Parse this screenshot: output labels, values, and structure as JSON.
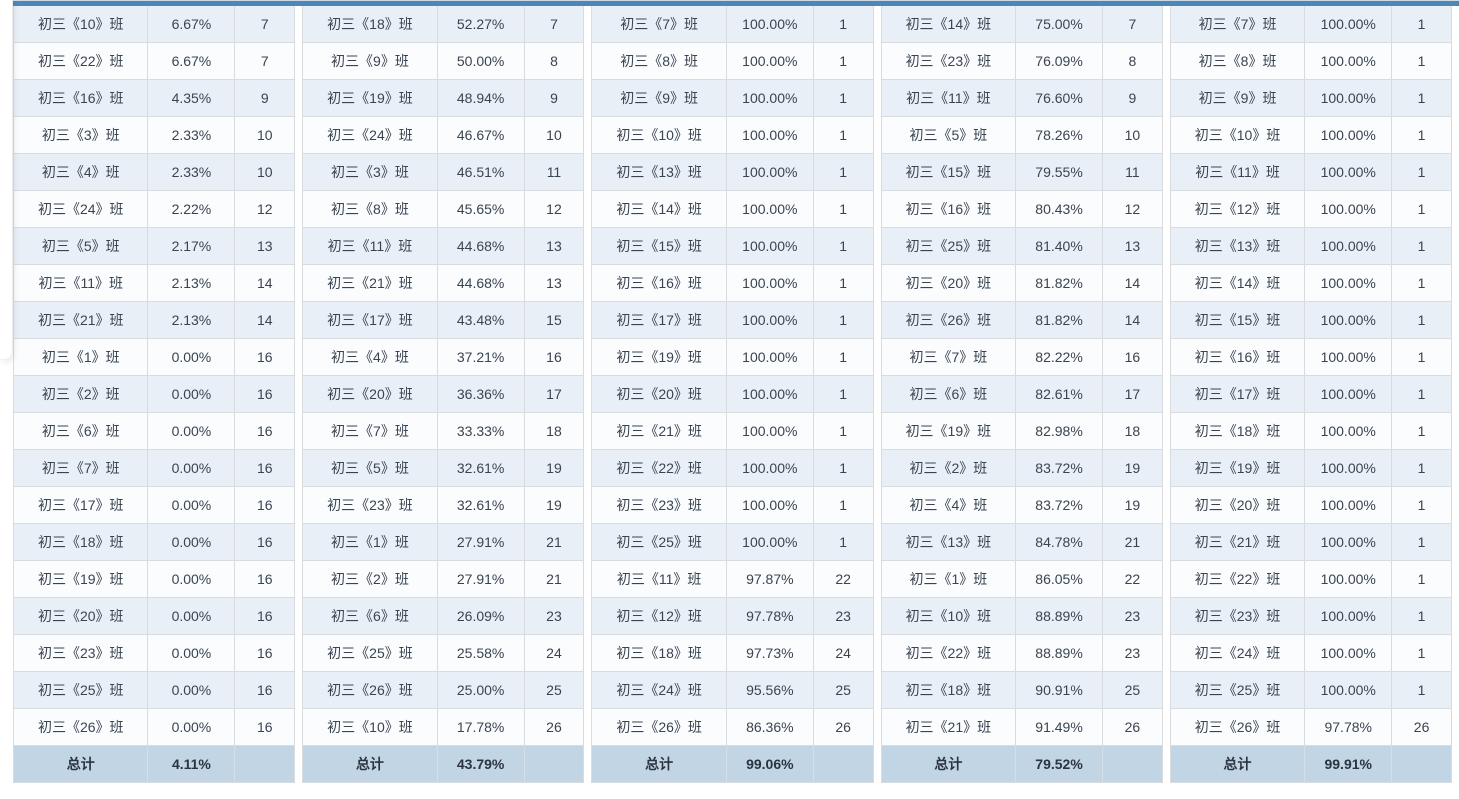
{
  "page": {
    "colors": {
      "top_bar": "#4e87b6",
      "row_stripe": "#e9eff7",
      "footer_bg": "#c2d5e5"
    }
  },
  "tables": [
    {
      "footer": {
        "label": "总计",
        "percent": "4.11%"
      },
      "rows": [
        {
          "name": "初三《10》班",
          "percent": "6.67%",
          "rank": "7"
        },
        {
          "name": "初三《22》班",
          "percent": "6.67%",
          "rank": "7"
        },
        {
          "name": "初三《16》班",
          "percent": "4.35%",
          "rank": "9"
        },
        {
          "name": "初三《3》班",
          "percent": "2.33%",
          "rank": "10"
        },
        {
          "name": "初三《4》班",
          "percent": "2.33%",
          "rank": "10"
        },
        {
          "name": "初三《24》班",
          "percent": "2.22%",
          "rank": "12"
        },
        {
          "name": "初三《5》班",
          "percent": "2.17%",
          "rank": "13"
        },
        {
          "name": "初三《11》班",
          "percent": "2.13%",
          "rank": "14"
        },
        {
          "name": "初三《21》班",
          "percent": "2.13%",
          "rank": "14"
        },
        {
          "name": "初三《1》班",
          "percent": "0.00%",
          "rank": "16"
        },
        {
          "name": "初三《2》班",
          "percent": "0.00%",
          "rank": "16"
        },
        {
          "name": "初三《6》班",
          "percent": "0.00%",
          "rank": "16"
        },
        {
          "name": "初三《7》班",
          "percent": "0.00%",
          "rank": "16"
        },
        {
          "name": "初三《17》班",
          "percent": "0.00%",
          "rank": "16"
        },
        {
          "name": "初三《18》班",
          "percent": "0.00%",
          "rank": "16"
        },
        {
          "name": "初三《19》班",
          "percent": "0.00%",
          "rank": "16"
        },
        {
          "name": "初三《20》班",
          "percent": "0.00%",
          "rank": "16"
        },
        {
          "name": "初三《23》班",
          "percent": "0.00%",
          "rank": "16"
        },
        {
          "name": "初三《25》班",
          "percent": "0.00%",
          "rank": "16"
        },
        {
          "name": "初三《26》班",
          "percent": "0.00%",
          "rank": "16"
        }
      ]
    },
    {
      "footer": {
        "label": "总计",
        "percent": "43.79%"
      },
      "rows": [
        {
          "name": "初三《18》班",
          "percent": "52.27%",
          "rank": "7"
        },
        {
          "name": "初三《9》班",
          "percent": "50.00%",
          "rank": "8"
        },
        {
          "name": "初三《19》班",
          "percent": "48.94%",
          "rank": "9"
        },
        {
          "name": "初三《24》班",
          "percent": "46.67%",
          "rank": "10"
        },
        {
          "name": "初三《3》班",
          "percent": "46.51%",
          "rank": "11"
        },
        {
          "name": "初三《8》班",
          "percent": "45.65%",
          "rank": "12"
        },
        {
          "name": "初三《11》班",
          "percent": "44.68%",
          "rank": "13"
        },
        {
          "name": "初三《21》班",
          "percent": "44.68%",
          "rank": "13"
        },
        {
          "name": "初三《17》班",
          "percent": "43.48%",
          "rank": "15"
        },
        {
          "name": "初三《4》班",
          "percent": "37.21%",
          "rank": "16"
        },
        {
          "name": "初三《20》班",
          "percent": "36.36%",
          "rank": "17"
        },
        {
          "name": "初三《7》班",
          "percent": "33.33%",
          "rank": "18"
        },
        {
          "name": "初三《5》班",
          "percent": "32.61%",
          "rank": "19"
        },
        {
          "name": "初三《23》班",
          "percent": "32.61%",
          "rank": "19"
        },
        {
          "name": "初三《1》班",
          "percent": "27.91%",
          "rank": "21"
        },
        {
          "name": "初三《2》班",
          "percent": "27.91%",
          "rank": "21"
        },
        {
          "name": "初三《6》班",
          "percent": "26.09%",
          "rank": "23"
        },
        {
          "name": "初三《25》班",
          "percent": "25.58%",
          "rank": "24"
        },
        {
          "name": "初三《26》班",
          "percent": "25.00%",
          "rank": "25"
        },
        {
          "name": "初三《10》班",
          "percent": "17.78%",
          "rank": "26"
        }
      ]
    },
    {
      "footer": {
        "label": "总计",
        "percent": "99.06%"
      },
      "rows": [
        {
          "name": "初三《7》班",
          "percent": "100.00%",
          "rank": "1"
        },
        {
          "name": "初三《8》班",
          "percent": "100.00%",
          "rank": "1"
        },
        {
          "name": "初三《9》班",
          "percent": "100.00%",
          "rank": "1"
        },
        {
          "name": "初三《10》班",
          "percent": "100.00%",
          "rank": "1"
        },
        {
          "name": "初三《13》班",
          "percent": "100.00%",
          "rank": "1"
        },
        {
          "name": "初三《14》班",
          "percent": "100.00%",
          "rank": "1"
        },
        {
          "name": "初三《15》班",
          "percent": "100.00%",
          "rank": "1"
        },
        {
          "name": "初三《16》班",
          "percent": "100.00%",
          "rank": "1"
        },
        {
          "name": "初三《17》班",
          "percent": "100.00%",
          "rank": "1"
        },
        {
          "name": "初三《19》班",
          "percent": "100.00%",
          "rank": "1"
        },
        {
          "name": "初三《20》班",
          "percent": "100.00%",
          "rank": "1"
        },
        {
          "name": "初三《21》班",
          "percent": "100.00%",
          "rank": "1"
        },
        {
          "name": "初三《22》班",
          "percent": "100.00%",
          "rank": "1"
        },
        {
          "name": "初三《23》班",
          "percent": "100.00%",
          "rank": "1"
        },
        {
          "name": "初三《25》班",
          "percent": "100.00%",
          "rank": "1"
        },
        {
          "name": "初三《11》班",
          "percent": "97.87%",
          "rank": "22"
        },
        {
          "name": "初三《12》班",
          "percent": "97.78%",
          "rank": "23"
        },
        {
          "name": "初三《18》班",
          "percent": "97.73%",
          "rank": "24"
        },
        {
          "name": "初三《24》班",
          "percent": "95.56%",
          "rank": "25"
        },
        {
          "name": "初三《26》班",
          "percent": "86.36%",
          "rank": "26"
        }
      ]
    },
    {
      "footer": {
        "label": "总计",
        "percent": "79.52%"
      },
      "rows": [
        {
          "name": "初三《14》班",
          "percent": "75.00%",
          "rank": "7"
        },
        {
          "name": "初三《23》班",
          "percent": "76.09%",
          "rank": "8"
        },
        {
          "name": "初三《11》班",
          "percent": "76.60%",
          "rank": "9"
        },
        {
          "name": "初三《5》班",
          "percent": "78.26%",
          "rank": "10"
        },
        {
          "name": "初三《15》班",
          "percent": "79.55%",
          "rank": "11"
        },
        {
          "name": "初三《16》班",
          "percent": "80.43%",
          "rank": "12"
        },
        {
          "name": "初三《25》班",
          "percent": "81.40%",
          "rank": "13"
        },
        {
          "name": "初三《20》班",
          "percent": "81.82%",
          "rank": "14"
        },
        {
          "name": "初三《26》班",
          "percent": "81.82%",
          "rank": "14"
        },
        {
          "name": "初三《7》班",
          "percent": "82.22%",
          "rank": "16"
        },
        {
          "name": "初三《6》班",
          "percent": "82.61%",
          "rank": "17"
        },
        {
          "name": "初三《19》班",
          "percent": "82.98%",
          "rank": "18"
        },
        {
          "name": "初三《2》班",
          "percent": "83.72%",
          "rank": "19"
        },
        {
          "name": "初三《4》班",
          "percent": "83.72%",
          "rank": "19"
        },
        {
          "name": "初三《13》班",
          "percent": "84.78%",
          "rank": "21"
        },
        {
          "name": "初三《1》班",
          "percent": "86.05%",
          "rank": "22"
        },
        {
          "name": "初三《10》班",
          "percent": "88.89%",
          "rank": "23"
        },
        {
          "name": "初三《22》班",
          "percent": "88.89%",
          "rank": "23"
        },
        {
          "name": "初三《18》班",
          "percent": "90.91%",
          "rank": "25"
        },
        {
          "name": "初三《21》班",
          "percent": "91.49%",
          "rank": "26"
        }
      ]
    },
    {
      "footer": {
        "label": "总计",
        "percent": "99.91%"
      },
      "rows": [
        {
          "name": "初三《7》班",
          "percent": "100.00%",
          "rank": "1"
        },
        {
          "name": "初三《8》班",
          "percent": "100.00%",
          "rank": "1"
        },
        {
          "name": "初三《9》班",
          "percent": "100.00%",
          "rank": "1"
        },
        {
          "name": "初三《10》班",
          "percent": "100.00%",
          "rank": "1"
        },
        {
          "name": "初三《11》班",
          "percent": "100.00%",
          "rank": "1"
        },
        {
          "name": "初三《12》班",
          "percent": "100.00%",
          "rank": "1"
        },
        {
          "name": "初三《13》班",
          "percent": "100.00%",
          "rank": "1"
        },
        {
          "name": "初三《14》班",
          "percent": "100.00%",
          "rank": "1"
        },
        {
          "name": "初三《15》班",
          "percent": "100.00%",
          "rank": "1"
        },
        {
          "name": "初三《16》班",
          "percent": "100.00%",
          "rank": "1"
        },
        {
          "name": "初三《17》班",
          "percent": "100.00%",
          "rank": "1"
        },
        {
          "name": "初三《18》班",
          "percent": "100.00%",
          "rank": "1"
        },
        {
          "name": "初三《19》班",
          "percent": "100.00%",
          "rank": "1"
        },
        {
          "name": "初三《20》班",
          "percent": "100.00%",
          "rank": "1"
        },
        {
          "name": "初三《21》班",
          "percent": "100.00%",
          "rank": "1"
        },
        {
          "name": "初三《22》班",
          "percent": "100.00%",
          "rank": "1"
        },
        {
          "name": "初三《23》班",
          "percent": "100.00%",
          "rank": "1"
        },
        {
          "name": "初三《24》班",
          "percent": "100.00%",
          "rank": "1"
        },
        {
          "name": "初三《25》班",
          "percent": "100.00%",
          "rank": "1"
        },
        {
          "name": "初三《26》班",
          "percent": "97.78%",
          "rank": "26"
        }
      ]
    }
  ]
}
